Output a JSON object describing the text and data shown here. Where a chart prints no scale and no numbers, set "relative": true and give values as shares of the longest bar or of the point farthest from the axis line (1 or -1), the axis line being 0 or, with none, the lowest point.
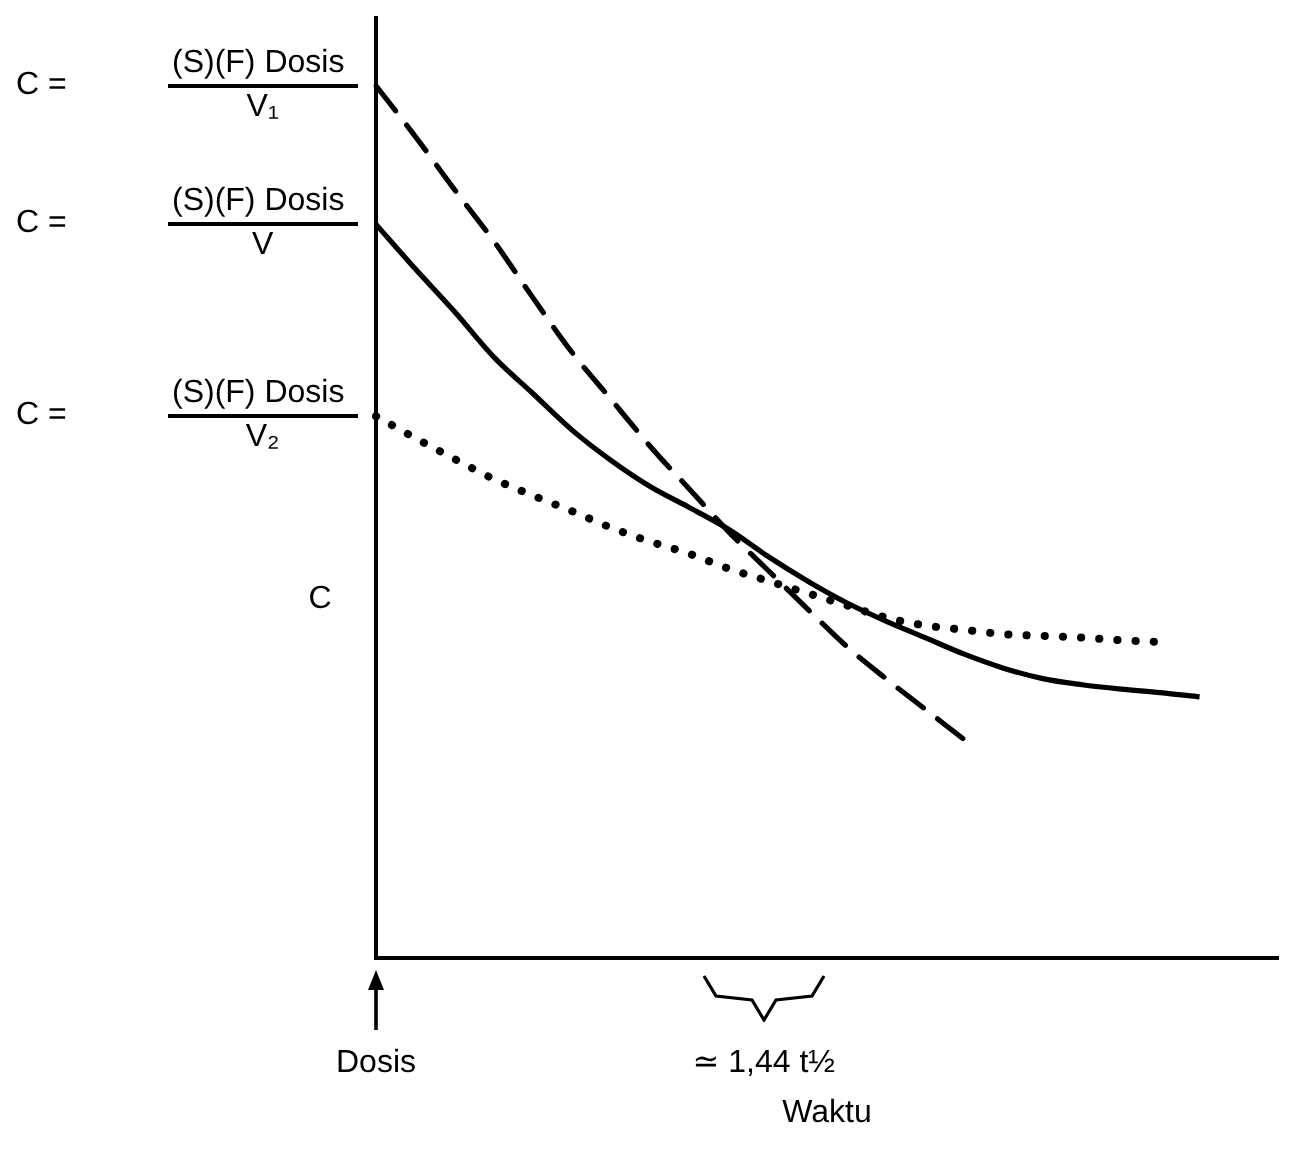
{
  "chart_data": {
    "type": "line",
    "relative": true,
    "ylabel": "C",
    "xlabel": "Waktu",
    "tick_labels": false,
    "grid": false,
    "legend": false,
    "marker": "none",
    "categories": [
      null,
      null,
      null,
      null,
      null,
      null,
      null,
      null,
      null,
      null,
      null,
      null,
      null,
      null,
      null,
      null,
      null,
      null,
      null,
      null,
      null,
      null,
      null,
      null
    ],
    "series": [
      {
        "color": "#000000",
        "line_style": "dashed",
        "values": [
          1,
          0.942,
          0.881,
          0.822,
          0.757,
          0.694,
          0.64,
          0.586,
          0.537,
          0.488,
          0.444,
          0.4,
          0.357,
          0.32,
          0.285,
          0.25,
          null,
          null,
          null,
          null,
          null,
          null,
          null,
          null
        ]
      },
      {
        "color": "#000000",
        "line_style": "solid",
        "values": [
          0.841,
          0.79,
          0.741,
          0.689,
          0.647,
          0.605,
          0.57,
          0.54,
          0.516,
          0.491,
          0.46,
          0.432,
          0.407,
          0.386,
          0.367,
          0.348,
          0.332,
          0.32,
          0.313,
          0.308,
          0.304,
          0.299,
          null,
          null
        ]
      },
      {
        "color": "#000000",
        "line_style": "dotted",
        "values": [
          0.621,
          0.596,
          0.572,
          0.549,
          0.53,
          0.512,
          0.493,
          0.477,
          0.463,
          0.446,
          0.432,
          0.418,
          0.404,
          0.39,
          0.381,
          0.376,
          0.371,
          0.369,
          0.367,
          0.364,
          0.362,
          null,
          null,
          null
        ]
      }
    ],
    "annotations": [
      "C = (S)(F) Dosis V₁",
      "C = (S)(F) Dosis V",
      "C = (S)(F) Dosis V₂",
      "Dosis",
      "≃ 1,44 t½"
    ]
  }
}
